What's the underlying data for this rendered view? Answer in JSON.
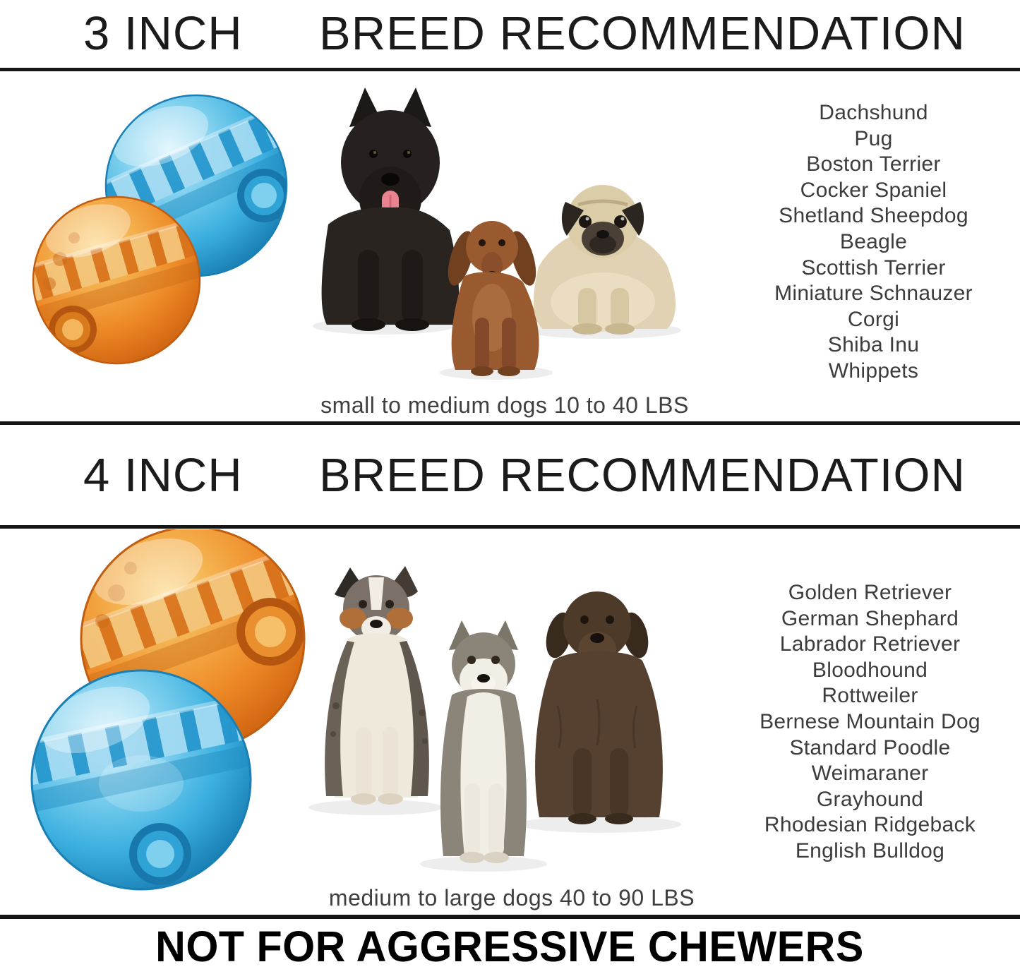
{
  "colors": {
    "rule": "#161616",
    "header_text": "#1b1b1b",
    "list_text": "#3c3c3c",
    "caption_text": "#3f3f3f",
    "footer_text": "#000000",
    "ball_blue": "#3aafdf",
    "ball_blue_deep": "#1a7fb4",
    "ball_orange": "#ee8a28",
    "ball_amber": "#f4b14e"
  },
  "sections": [
    {
      "size_label": "3 INCH",
      "title": "BREED RECOMMENDATION",
      "caption": "small to medium dogs 10 to 40 LBS",
      "balls": [
        "blue-treat-ball",
        "orange-treat-ball"
      ],
      "dogs": [
        "scottish-terrier",
        "dachshund",
        "pug"
      ],
      "breeds": [
        "Dachshund",
        "Pug",
        "Boston Terrier",
        "Cocker Spaniel",
        "Shetland Sheepdog",
        "Beagle",
        "Scottish Terrier",
        "Miniature Schnauzer",
        "Corgi",
        "Shiba Inu",
        "Whippets"
      ]
    },
    {
      "size_label": "4 INCH",
      "title": "BREED RECOMMENDATION",
      "caption": "medium to large dogs 40 to 90 LBS",
      "balls": [
        "orange-treat-ball",
        "blue-treat-ball"
      ],
      "dogs": [
        "australian-shepherd",
        "siberian-husky",
        "wirehaired-pointing-griffon"
      ],
      "breeds": [
        "Golden Retriever",
        "German Shephard",
        "Labrador Retriever",
        "Bloodhound",
        "Rottweiler",
        "Bernese Mountain Dog",
        "Standard Poodle",
        "Weimaraner",
        "Grayhound",
        "Rhodesian Ridgeback",
        "English Bulldog"
      ]
    }
  ],
  "footer": {
    "warning": "NOT FOR AGGRESSIVE CHEWERS"
  }
}
